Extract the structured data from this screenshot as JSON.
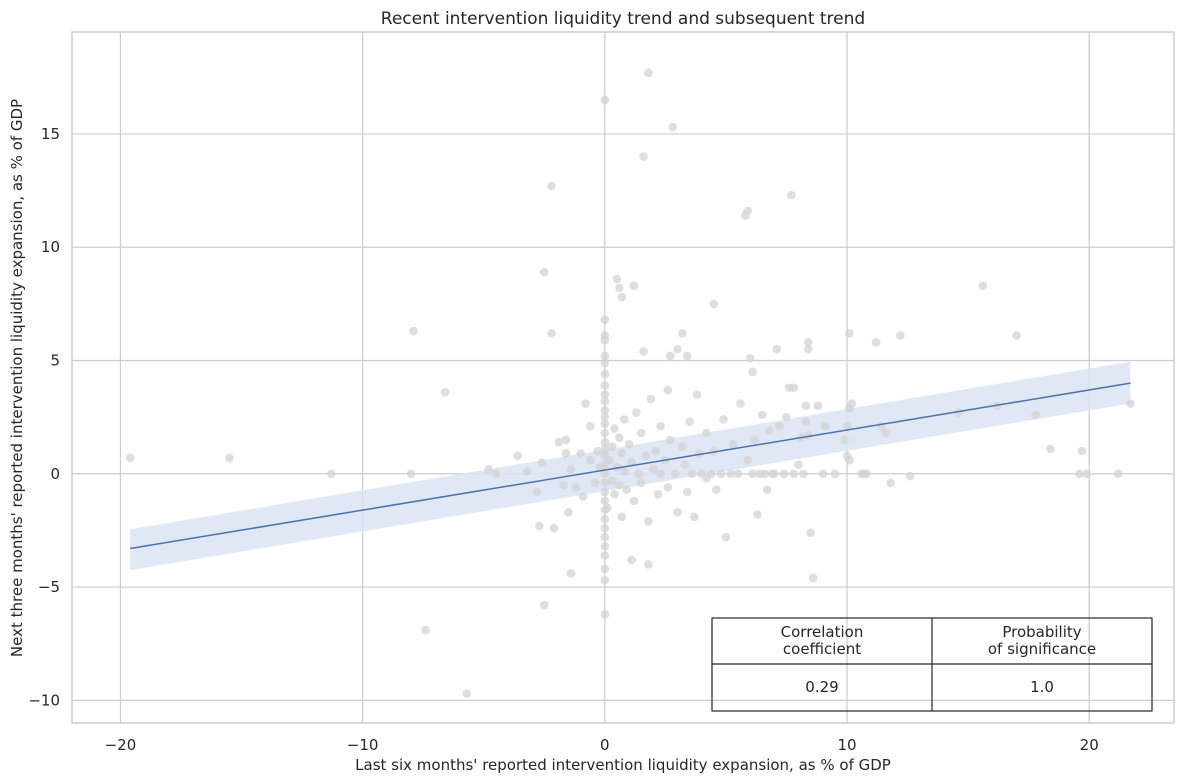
{
  "chart_data": {
    "type": "scatter",
    "title": "Recent intervention liquidity trend and subsequent trend",
    "xlabel": "Last six months' reported intervention liquidity expansion, as % of GDP",
    "ylabel": "Next three months' reported intervention liquidity expansion, as % of GDP",
    "xlim": [
      -22,
      23.5
    ],
    "ylim": [
      -11,
      19.5
    ],
    "x_ticks": [
      -20,
      -10,
      0,
      10,
      20
    ],
    "x_tick_labels": [
      "−20",
      "−10",
      "0",
      "10",
      "20"
    ],
    "y_ticks": [
      -10,
      -5,
      0,
      5,
      10,
      15
    ],
    "y_tick_labels": [
      "−10",
      "−5",
      "0",
      "5",
      "10",
      "15"
    ],
    "grid": true,
    "colors": {
      "points": "#d3d3d3",
      "regression_line": "#4c72b0",
      "confidence_band": "#dbe3f3"
    },
    "points": [
      [
        -19.6,
        0.7
      ],
      [
        -15.5,
        0.7
      ],
      [
        -11.3,
        0.0
      ],
      [
        -8.0,
        0.0
      ],
      [
        -7.9,
        6.3
      ],
      [
        -7.4,
        -6.9
      ],
      [
        -6.6,
        3.6
      ],
      [
        -5.7,
        -9.7
      ],
      [
        -4.8,
        0.2
      ],
      [
        -4.5,
        0.0
      ],
      [
        -3.6,
        0.8
      ],
      [
        -3.2,
        0.1
      ],
      [
        -2.8,
        -0.8
      ],
      [
        -2.7,
        -2.3
      ],
      [
        -2.6,
        0.5
      ],
      [
        -2.5,
        -5.8
      ],
      [
        -2.5,
        8.9
      ],
      [
        -2.2,
        12.7
      ],
      [
        -2.2,
        6.2
      ],
      [
        -2.1,
        -2.4
      ],
      [
        -1.9,
        1.4
      ],
      [
        -1.6,
        0.9
      ],
      [
        -1.7,
        -0.5
      ],
      [
        -1.4,
        0.2
      ],
      [
        -1.5,
        -1.7
      ],
      [
        -1.6,
        1.5
      ],
      [
        -1.4,
        -4.4
      ],
      [
        -1.2,
        -0.6
      ],
      [
        -1.0,
        0.9
      ],
      [
        -0.9,
        -1.0
      ],
      [
        -0.8,
        3.1
      ],
      [
        -0.6,
        0.6
      ],
      [
        -0.6,
        2.1
      ],
      [
        -0.4,
        -0.4
      ],
      [
        -0.3,
        1.0
      ],
      [
        -0.2,
        0.3
      ],
      [
        0.0,
        16.5
      ],
      [
        0.0,
        6.8
      ],
      [
        0.0,
        6.1
      ],
      [
        0.0,
        5.9
      ],
      [
        0.0,
        5.2
      ],
      [
        0.0,
        4.9
      ],
      [
        0.0,
        4.4
      ],
      [
        0.0,
        3.9
      ],
      [
        0.0,
        3.5
      ],
      [
        0.0,
        3.2
      ],
      [
        0.0,
        2.8
      ],
      [
        0.0,
        2.5
      ],
      [
        0.0,
        2.2
      ],
      [
        0.0,
        1.8
      ],
      [
        0.0,
        1.4
      ],
      [
        0.0,
        1.1
      ],
      [
        0.0,
        0.8
      ],
      [
        0.0,
        0.4
      ],
      [
        0.0,
        0.0
      ],
      [
        0.0,
        -0.4
      ],
      [
        0.0,
        -0.8
      ],
      [
        0.0,
        -1.2
      ],
      [
        0.0,
        -1.6
      ],
      [
        0.0,
        -2.0
      ],
      [
        0.0,
        -2.4
      ],
      [
        0.0,
        -2.8
      ],
      [
        0.0,
        -3.2
      ],
      [
        0.0,
        -3.6
      ],
      [
        0.0,
        -4.2
      ],
      [
        0.0,
        -4.7
      ],
      [
        0.0,
        -6.2
      ],
      [
        0.1,
        -1.5
      ],
      [
        0.2,
        0.6
      ],
      [
        0.3,
        -0.3
      ],
      [
        0.3,
        1.2
      ],
      [
        0.4,
        2.0
      ],
      [
        0.4,
        -0.9
      ],
      [
        0.5,
        0.3
      ],
      [
        0.5,
        8.6
      ],
      [
        0.6,
        1.6
      ],
      [
        0.6,
        -0.5
      ],
      [
        0.7,
        0.9
      ],
      [
        0.7,
        -1.9
      ],
      [
        0.8,
        2.4
      ],
      [
        0.8,
        0.1
      ],
      [
        0.6,
        8.2
      ],
      [
        0.7,
        7.8
      ],
      [
        0.9,
        -0.7
      ],
      [
        1.0,
        1.3
      ],
      [
        1.1,
        -3.8
      ],
      [
        1.1,
        0.5
      ],
      [
        1.2,
        -1.2
      ],
      [
        1.2,
        8.3
      ],
      [
        1.3,
        2.7
      ],
      [
        1.4,
        0.0
      ],
      [
        1.5,
        1.8
      ],
      [
        1.5,
        -0.4
      ],
      [
        1.6,
        14.0
      ],
      [
        1.6,
        5.4
      ],
      [
        1.7,
        0.8
      ],
      [
        1.8,
        17.7
      ],
      [
        1.8,
        -2.1
      ],
      [
        1.8,
        -4.0
      ],
      [
        1.9,
        3.3
      ],
      [
        2.0,
        0.2
      ],
      [
        2.1,
        1.0
      ],
      [
        2.2,
        -0.9
      ],
      [
        2.3,
        0.0
      ],
      [
        2.3,
        2.1
      ],
      [
        2.5,
        0.6
      ],
      [
        2.6,
        -0.6
      ],
      [
        2.6,
        3.7
      ],
      [
        2.7,
        1.5
      ],
      [
        2.7,
        5.2
      ],
      [
        2.8,
        15.3
      ],
      [
        2.9,
        0.0
      ],
      [
        3.0,
        -1.7
      ],
      [
        3.0,
        5.5
      ],
      [
        3.2,
        6.2
      ],
      [
        3.2,
        1.2
      ],
      [
        3.3,
        0.4
      ],
      [
        3.4,
        -0.8
      ],
      [
        3.4,
        5.2
      ],
      [
        3.5,
        2.3
      ],
      [
        3.6,
        0.0
      ],
      [
        3.7,
        -1.9
      ],
      [
        3.8,
        3.5
      ],
      [
        3.9,
        0.9
      ],
      [
        4.0,
        0.0
      ],
      [
        4.2,
        -0.2
      ],
      [
        4.2,
        1.8
      ],
      [
        4.4,
        0.0
      ],
      [
        4.5,
        7.5
      ],
      [
        4.5,
        1.0
      ],
      [
        4.6,
        -0.7
      ],
      [
        4.8,
        0.0
      ],
      [
        4.9,
        2.4
      ],
      [
        5.0,
        -2.8
      ],
      [
        5.2,
        0.0
      ],
      [
        5.3,
        1.3
      ],
      [
        5.5,
        0.0
      ],
      [
        5.6,
        3.1
      ],
      [
        5.8,
        11.4
      ],
      [
        5.9,
        11.6
      ],
      [
        5.9,
        0.6
      ],
      [
        6.0,
        5.1
      ],
      [
        6.1,
        0.0
      ],
      [
        6.1,
        4.5
      ],
      [
        6.2,
        1.5
      ],
      [
        6.3,
        -1.8
      ],
      [
        6.4,
        0.0
      ],
      [
        6.5,
        2.6
      ],
      [
        6.6,
        0.0
      ],
      [
        6.7,
        -0.7
      ],
      [
        6.8,
        1.9
      ],
      [
        6.9,
        0.0
      ],
      [
        7.0,
        0.0
      ],
      [
        7.1,
        5.5
      ],
      [
        7.2,
        2.1
      ],
      [
        7.4,
        0.0
      ],
      [
        7.5,
        2.5
      ],
      [
        7.6,
        3.8
      ],
      [
        7.7,
        12.3
      ],
      [
        7.8,
        0.0
      ],
      [
        7.8,
        3.8
      ],
      [
        8.0,
        0.4
      ],
      [
        8.1,
        1.6
      ],
      [
        8.2,
        0.0
      ],
      [
        8.3,
        2.3
      ],
      [
        8.3,
        3.0
      ],
      [
        8.4,
        5.5
      ],
      [
        8.4,
        5.8
      ],
      [
        8.4,
        1.7
      ],
      [
        8.5,
        -2.6
      ],
      [
        8.6,
        -4.6
      ],
      [
        8.8,
        3.0
      ],
      [
        9.0,
        0.0
      ],
      [
        9.1,
        2.1
      ],
      [
        9.5,
        0.0
      ],
      [
        9.9,
        1.5
      ],
      [
        10.0,
        2.1
      ],
      [
        10.0,
        0.8
      ],
      [
        10.1,
        6.2
      ],
      [
        10.1,
        2.9
      ],
      [
        10.1,
        0.6
      ],
      [
        10.2,
        3.1
      ],
      [
        10.6,
        0.0
      ],
      [
        10.7,
        0.0
      ],
      [
        10.8,
        0.0
      ],
      [
        11.2,
        5.8
      ],
      [
        11.4,
        2.1
      ],
      [
        11.6,
        1.8
      ],
      [
        11.8,
        -0.4
      ],
      [
        12.2,
        6.1
      ],
      [
        12.6,
        -0.1
      ],
      [
        14.6,
        2.7
      ],
      [
        15.6,
        8.3
      ],
      [
        16.2,
        3.0
      ],
      [
        17.0,
        6.1
      ],
      [
        17.8,
        2.6
      ],
      [
        18.4,
        1.1
      ],
      [
        19.6,
        0.0
      ],
      [
        19.7,
        1.0
      ],
      [
        19.9,
        0.0
      ],
      [
        21.2,
        0.0
      ],
      [
        21.7,
        3.1
      ]
    ],
    "regression": {
      "x": [
        -19.6,
        21.7
      ],
      "y": [
        -3.3,
        4.0
      ],
      "ci_lower": [
        -4.25,
        3.1
      ],
      "ci_upper": [
        -2.45,
        4.95
      ]
    },
    "table": {
      "headers": [
        [
          "Correlation",
          "coefficient"
        ],
        [
          "Probability",
          "of significance"
        ]
      ],
      "values": [
        "0.29",
        "1.0"
      ]
    }
  }
}
